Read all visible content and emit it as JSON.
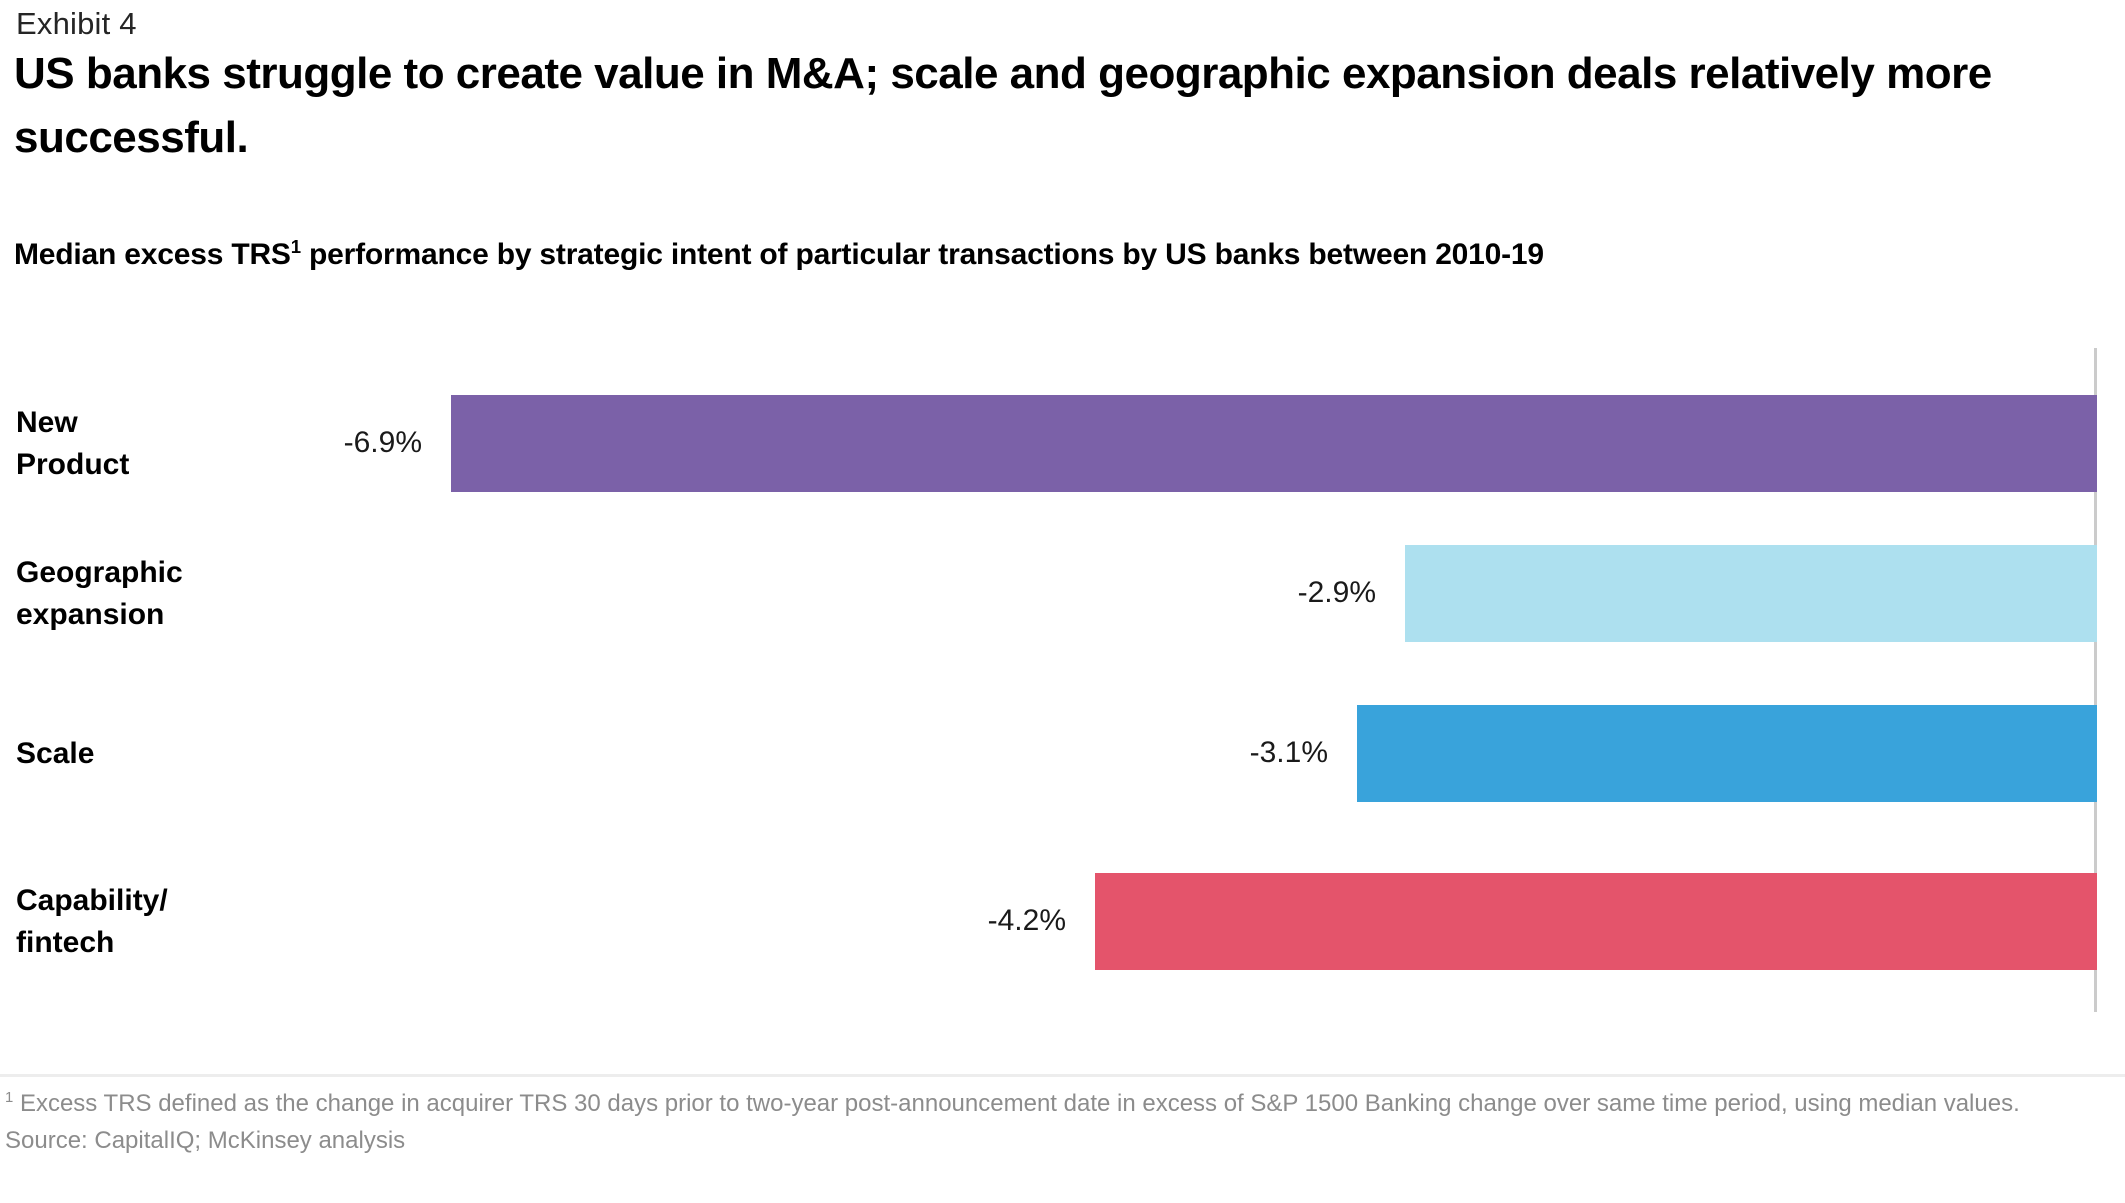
{
  "exhibit_label": "Exhibit 4",
  "title": "US banks struggle to create value in M&A; scale and geographic expansion deals relatively more successful.",
  "subtitle": {
    "prefix": "Median excess TRS",
    "superscript": "1",
    "suffix": " performance by strategic intent of particular transactions by US banks between 2010-19"
  },
  "chart_data": {
    "type": "bar",
    "orientation": "horizontal",
    "title": "Median excess TRS performance by strategic intent of particular transactions by US banks between 2010-19",
    "categories": [
      "New Product",
      "Geographic expansion",
      "Scale",
      "Capability/fintech"
    ],
    "category_label_lines": [
      "New\nProduct",
      "Geographic\nexpansion",
      "Scale",
      "Capability/\nfintech"
    ],
    "values": [
      -6.9,
      -2.9,
      -3.1,
      -4.2
    ],
    "value_labels": [
      "-6.9%",
      "-2.9%",
      "-3.1%",
      "-4.2%"
    ],
    "bar_colors": [
      "#7B61A8",
      "#ADE0EF",
      "#39A3DB",
      "#E4546B"
    ],
    "unit": "%",
    "xlim": [
      -6.9,
      0
    ],
    "baseline_side": "right",
    "axis_line_color": "#CBCBCB",
    "grid": false,
    "legend": false
  },
  "footnote": {
    "superscript": "1",
    "text": "  Excess TRS defined as the change in acquirer TRS 30 days prior to two-year post-announcement date in excess of S&P 1500 Banking change over same time period, using median values."
  },
  "source": "Source: CapitalIQ; McKinsey analysis"
}
